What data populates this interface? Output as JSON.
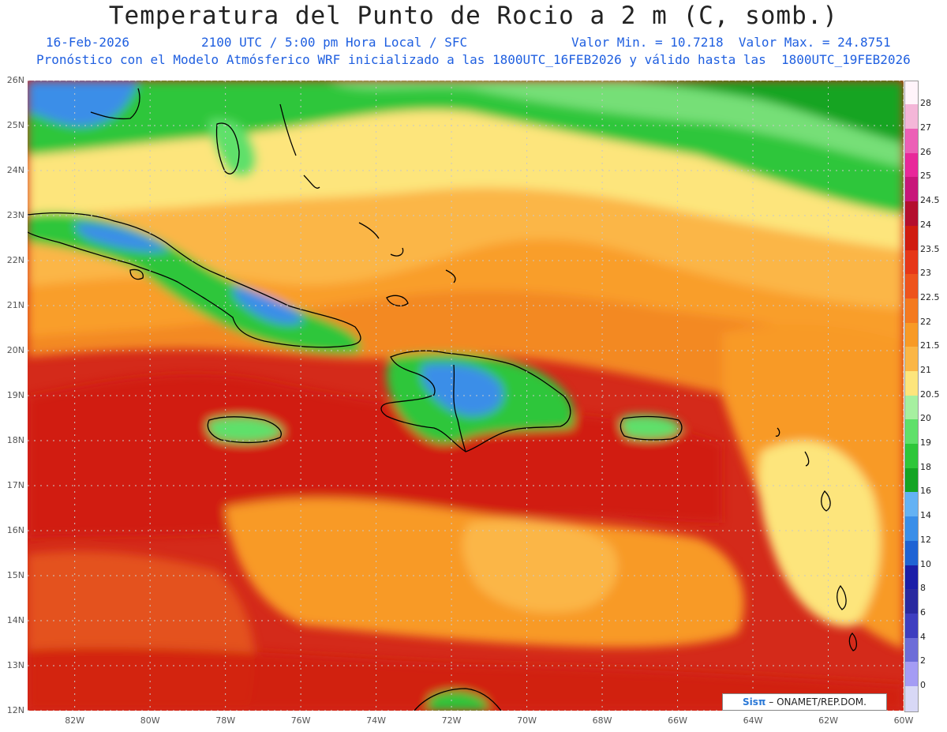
{
  "header": {
    "title": "Temperatura del Punto de Rocio a 2 m (C, somb.)",
    "date": "16-Feb-2026",
    "time": "2100 UTC / 5:00 pm Hora Local / SFC",
    "stats": "Valor Min. = 10.7218  Valor Max. = 24.8751",
    "model_line": "Pronóstico con el Modelo Atmósferico WRF inicializado a las 1800UTC_16FEB2026 y válido hasta las  1800UTC_19FEB2026"
  },
  "map": {
    "lat_labels": [
      "26N",
      "25N",
      "24N",
      "23N",
      "22N",
      "21N",
      "20N",
      "19N",
      "18N",
      "17N",
      "16N",
      "15N",
      "14N",
      "13N",
      "12N"
    ],
    "lon_labels": [
      "82W",
      "80W",
      "78W",
      "76W",
      "74W",
      "72W",
      "70W",
      "68W",
      "66W",
      "64W",
      "62W",
      "60W"
    ],
    "lat_range": [
      12,
      26
    ],
    "lon_range": [
      -83.25,
      -60
    ]
  },
  "colorbar": {
    "labels": [
      "28",
      "27",
      "26",
      "25",
      "24.5",
      "24",
      "23.5",
      "23",
      "22.5",
      "22",
      "21.5",
      "21",
      "20.5",
      "20",
      "19",
      "18",
      "16",
      "14",
      "12",
      "10",
      "8",
      "6",
      "4",
      "2",
      "0"
    ],
    "colors": [
      "#f4b6d8",
      "#ec5fb6",
      "#e8289a",
      "#c8177a",
      "#b40e2e",
      "#d01c10",
      "#e63718",
      "#ee541c",
      "#f47a20",
      "#f89a26",
      "#fbb646",
      "#fde57c",
      "#a6f0a0",
      "#5fe06a",
      "#2ec63a",
      "#15a424",
      "#64b2f4",
      "#3a8ee8",
      "#1f63d4",
      "#1b1ea8",
      "#2a2aa0",
      "#3e3ec0",
      "#6d6dd8",
      "#a49cf4",
      "#d8d8f6"
    ],
    "top_color": "#fff4fa",
    "bottom_color": "#ffffff"
  },
  "credit": {
    "logo": "Sisπ",
    "text": "– ONAMET/REP.DOM."
  }
}
